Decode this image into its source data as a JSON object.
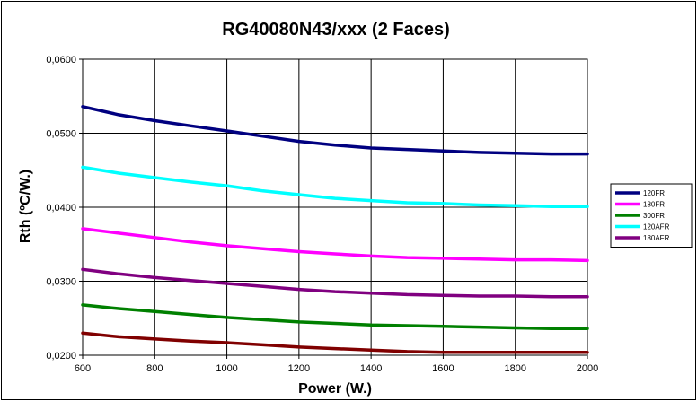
{
  "chart_data": {
    "type": "line",
    "title": "RG40080N43/xxx (2 Faces)",
    "xlabel": "Power (W.)",
    "ylabel": "Rth (ºC/W.)",
    "xlim": [
      600,
      2000
    ],
    "ylim": [
      0.02,
      0.06
    ],
    "x_ticks": [
      "600",
      "800",
      "1000",
      "1200",
      "1400",
      "1600",
      "1800",
      "2000"
    ],
    "y_ticks": [
      "0,0200",
      "0,0300",
      "0,0400",
      "0,0500",
      "0,0600"
    ],
    "grid": true,
    "legend_position": "right",
    "x": [
      600,
      700,
      800,
      900,
      1000,
      1100,
      1200,
      1300,
      1400,
      1500,
      1600,
      1700,
      1800,
      1900,
      2000
    ],
    "series": [
      {
        "name": "120FR",
        "color": "#000080",
        "values": [
          0.0536,
          0.0525,
          0.0517,
          0.051,
          0.0503,
          0.0496,
          0.0489,
          0.0484,
          0.048,
          0.0478,
          0.0476,
          0.0474,
          0.0473,
          0.0472,
          0.0472
        ]
      },
      {
        "name": "180FR",
        "color": "#ff00ff",
        "values": [
          0.0371,
          0.0365,
          0.0359,
          0.0353,
          0.0348,
          0.0344,
          0.034,
          0.0337,
          0.0334,
          0.0332,
          0.0331,
          0.033,
          0.0329,
          0.0329,
          0.0328
        ]
      },
      {
        "name": "300FR",
        "color": "#008000",
        "values": [
          0.0268,
          0.0263,
          0.0259,
          0.0255,
          0.0251,
          0.0248,
          0.0245,
          0.0243,
          0.0241,
          0.024,
          0.0239,
          0.0238,
          0.0237,
          0.0236,
          0.0236
        ]
      },
      {
        "name": "120AFR",
        "color": "#00ffff",
        "values": [
          0.0454,
          0.0446,
          0.044,
          0.0434,
          0.0429,
          0.0422,
          0.0417,
          0.0412,
          0.0409,
          0.0406,
          0.0405,
          0.0403,
          0.0402,
          0.0401,
          0.0401
        ]
      },
      {
        "name": "180AFR",
        "color": "#800080",
        "values": [
          0.0316,
          0.031,
          0.0305,
          0.0301,
          0.0297,
          0.0293,
          0.0289,
          0.0286,
          0.0284,
          0.0282,
          0.0281,
          0.028,
          0.028,
          0.0279,
          0.0279
        ]
      },
      {
        "color": "#800000",
        "values": [
          0.023,
          0.0225,
          0.0222,
          0.0219,
          0.0217,
          0.0214,
          0.0211,
          0.0209,
          0.0207,
          0.0205,
          0.0204,
          0.0204,
          0.0204,
          0.0204,
          0.0204
        ]
      }
    ]
  }
}
